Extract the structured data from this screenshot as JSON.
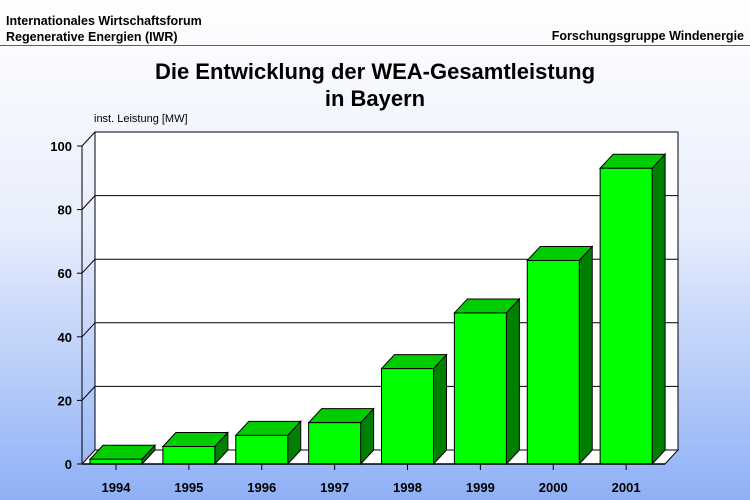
{
  "header": {
    "org_line1": "Internationales Wirtschaftsforum",
    "org_line2": "Regenerative Energien (IWR)",
    "group": "Forschungsgruppe Windenergie"
  },
  "colors": {
    "bar_front": "#00ff00",
    "bar_top": "#00cc00",
    "bar_side": "#008000",
    "rule": "#d03030"
  },
  "chart_data": {
    "type": "bar",
    "title": "Die Entwicklung der WEA-Gesamtleistung",
    "subtitle": "in Bayern",
    "ylabel": "inst. Leistung [MW]",
    "xlabel": "",
    "categories": [
      "1994",
      "1995",
      "1996",
      "1997",
      "1998",
      "1999",
      "2000",
      "2001"
    ],
    "values": [
      1.5,
      5.5,
      9,
      13,
      30,
      47.5,
      64,
      93
    ],
    "ylim": [
      0,
      100
    ],
    "yticks": [
      0,
      20,
      40,
      60,
      80,
      100
    ],
    "grid": true,
    "three_d": true,
    "legend": "none"
  }
}
